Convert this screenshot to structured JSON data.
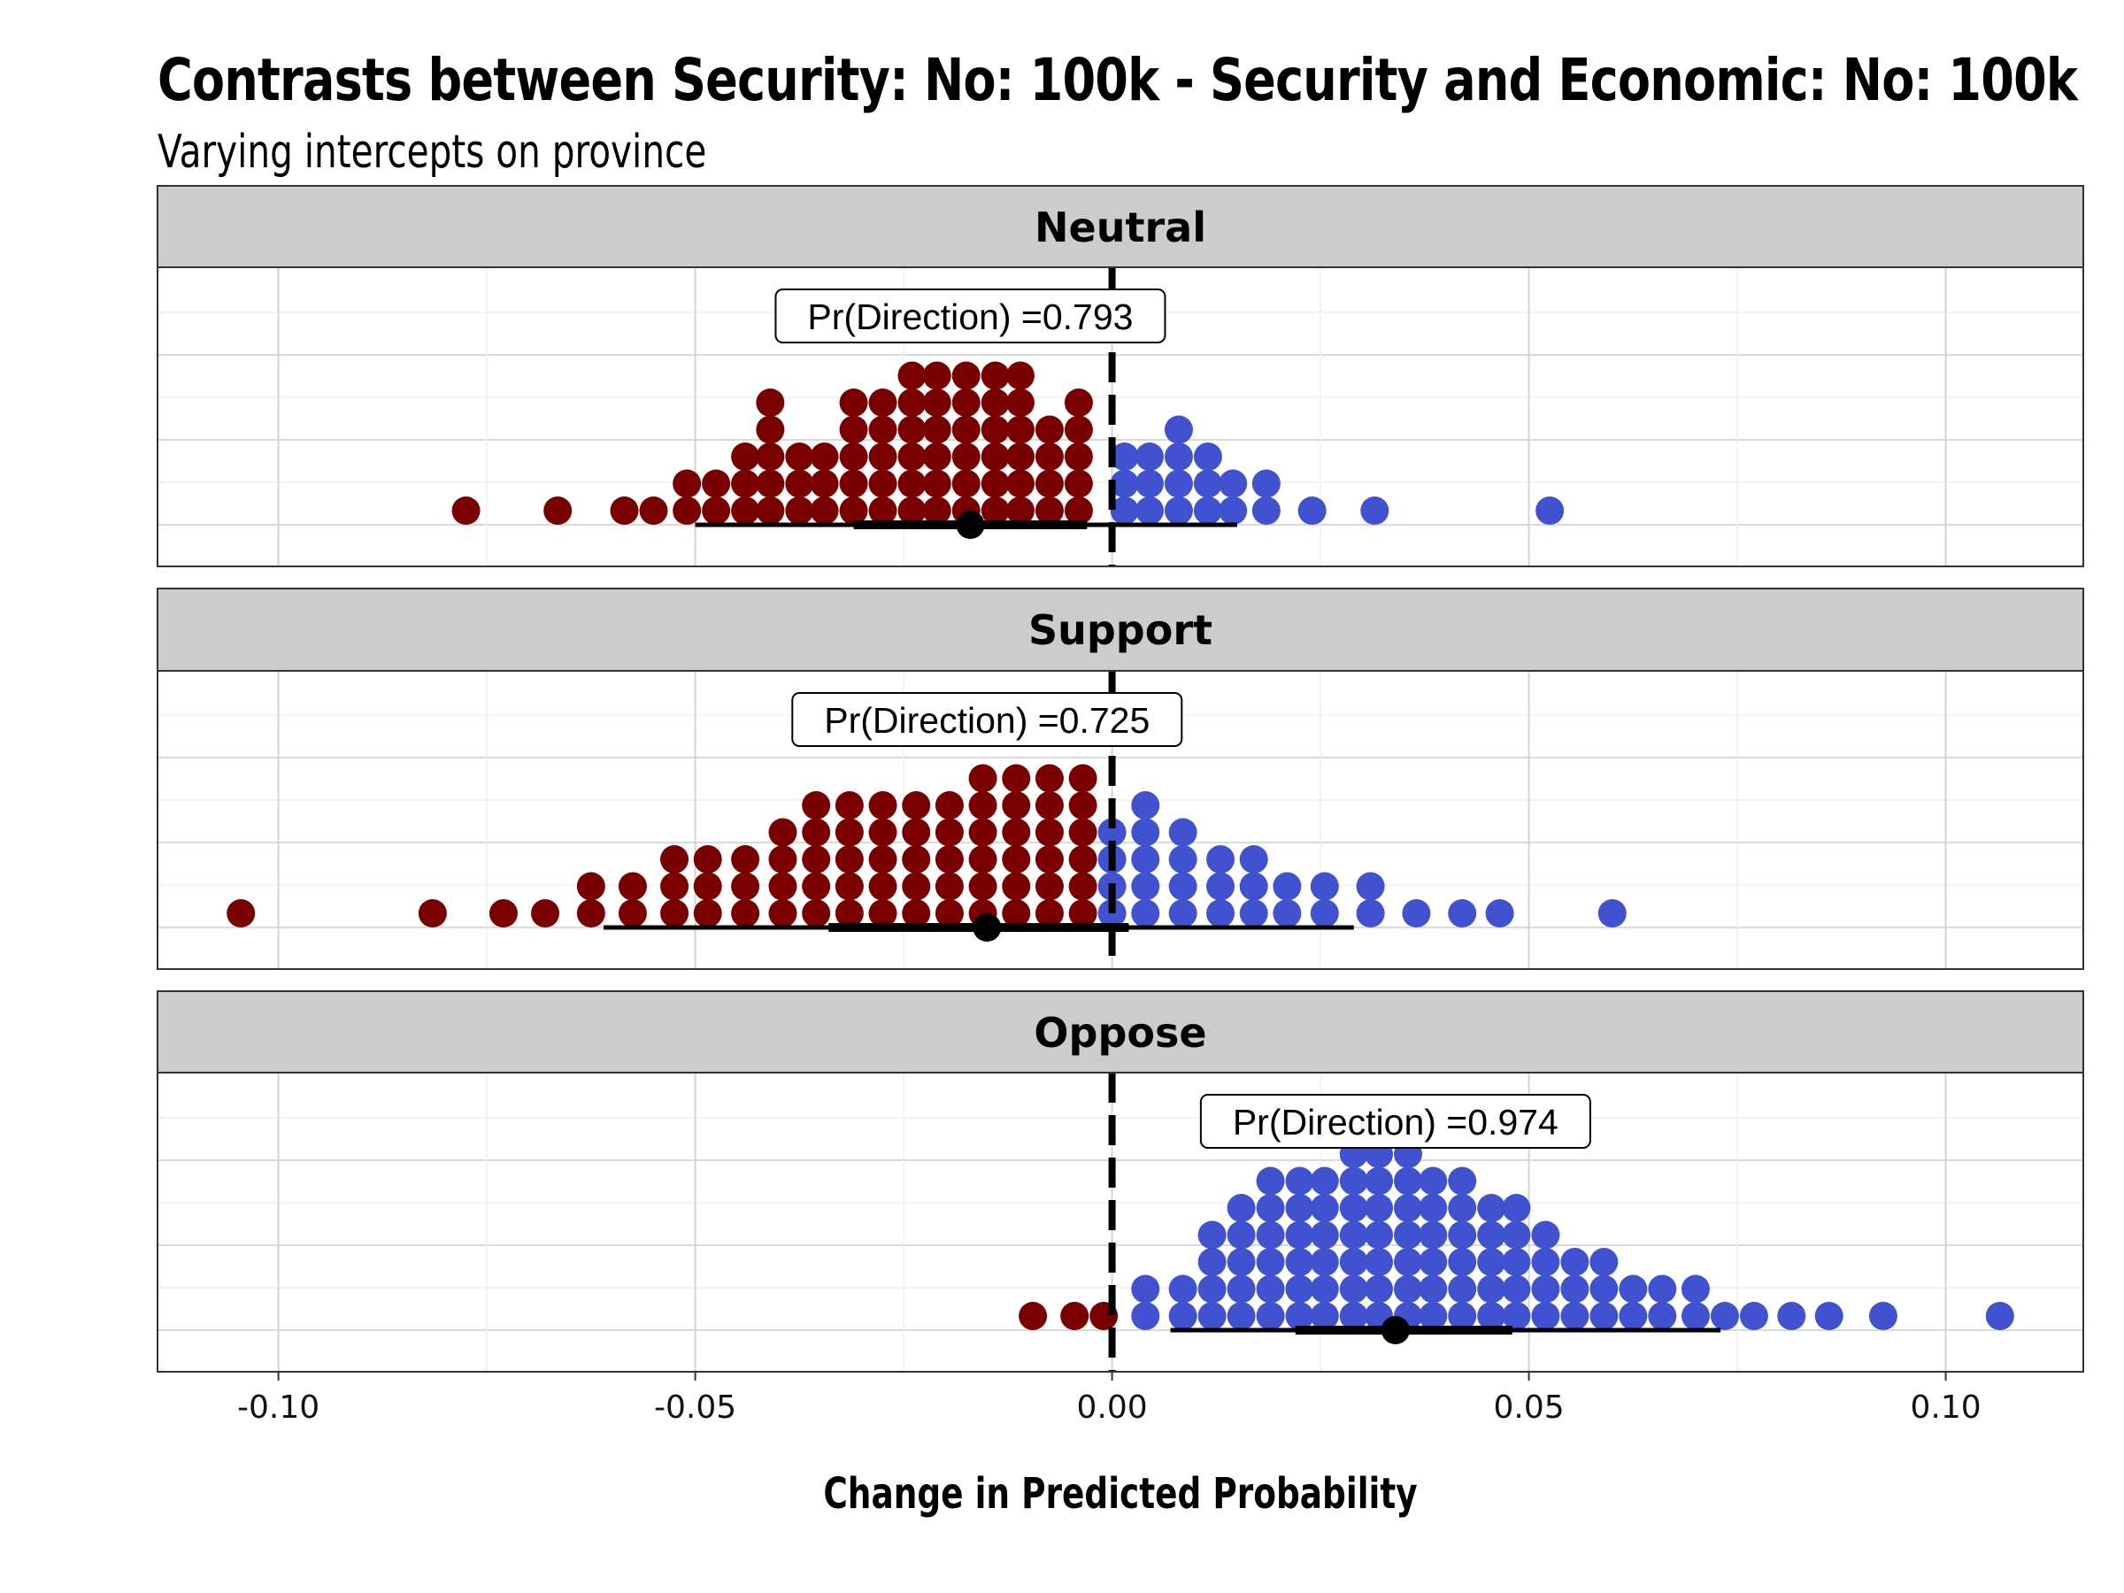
{
  "chart_data": {
    "type": "dotplot",
    "title": "Contrasts between Security: No: 100k - Security and Economic: No: 100k",
    "subtitle": "Varying intercepts on province",
    "xlabel": "Change in Predicted Probability",
    "xlim": [
      -0.1145,
      0.1165
    ],
    "x_ticks": [
      -0.1,
      -0.05,
      0.0,
      0.05,
      0.1
    ],
    "x_tick_labels": [
      "-0.10",
      "-0.05",
      "0.00",
      "0.05",
      "0.10"
    ],
    "reference_line": 0,
    "colors": {
      "negative": "#7a0000",
      "positive": "#4052d0",
      "strip": "#cccccc",
      "interval": "#000000"
    },
    "panels": [
      {
        "label": "Neutral",
        "annotation": "Pr(Direction) =0.793",
        "annotation_x": -0.017,
        "point_estimate": -0.017,
        "interval_66": [
          -0.031,
          -0.003
        ],
        "interval_95": [
          -0.05,
          0.015
        ],
        "dot_columns": [
          [
            -0.0775,
            1
          ],
          [
            -0.0665,
            1
          ],
          [
            -0.0585,
            1
          ],
          [
            -0.055,
            1
          ],
          [
            -0.051,
            2
          ],
          [
            -0.0475,
            2
          ],
          [
            -0.044,
            3
          ],
          [
            -0.041,
            5
          ],
          [
            -0.0375,
            3
          ],
          [
            -0.0345,
            3
          ],
          [
            -0.031,
            5
          ],
          [
            -0.0275,
            5
          ],
          [
            -0.024,
            6
          ],
          [
            -0.021,
            6
          ],
          [
            -0.0175,
            6
          ],
          [
            -0.014,
            6
          ],
          [
            -0.011,
            6
          ],
          [
            -0.0075,
            4
          ],
          [
            -0.004,
            5
          ],
          [
            0.0015,
            3
          ],
          [
            0.0045,
            3
          ],
          [
            0.008,
            4
          ],
          [
            0.0115,
            3
          ],
          [
            0.0145,
            2
          ],
          [
            0.0185,
            2
          ],
          [
            0.024,
            1
          ],
          [
            0.0315,
            1
          ],
          [
            0.0525,
            1
          ]
        ]
      },
      {
        "label": "Support",
        "annotation": "Pr(Direction) =0.725",
        "annotation_x": -0.015,
        "point_estimate": -0.015,
        "interval_66": [
          -0.034,
          0.002
        ],
        "interval_95": [
          -0.061,
          0.029
        ],
        "dot_columns": [
          [
            -0.1045,
            1
          ],
          [
            -0.0815,
            1
          ],
          [
            -0.073,
            1
          ],
          [
            -0.068,
            1
          ],
          [
            -0.0625,
            2
          ],
          [
            -0.0575,
            2
          ],
          [
            -0.0525,
            3
          ],
          [
            -0.0485,
            3
          ],
          [
            -0.044,
            3
          ],
          [
            -0.0395,
            4
          ],
          [
            -0.0355,
            5
          ],
          [
            -0.0315,
            5
          ],
          [
            -0.0275,
            5
          ],
          [
            -0.0235,
            5
          ],
          [
            -0.0195,
            5
          ],
          [
            -0.0155,
            6
          ],
          [
            -0.0115,
            6
          ],
          [
            -0.0075,
            6
          ],
          [
            -0.0035,
            6
          ],
          [
            0.0,
            4
          ],
          [
            0.004,
            5
          ],
          [
            0.0085,
            4
          ],
          [
            0.013,
            3
          ],
          [
            0.017,
            3
          ],
          [
            0.021,
            2
          ],
          [
            0.0255,
            2
          ],
          [
            0.031,
            2
          ],
          [
            0.0365,
            1
          ],
          [
            0.042,
            1
          ],
          [
            0.0465,
            1
          ],
          [
            0.06,
            1
          ]
        ]
      },
      {
        "label": "Oppose",
        "annotation": "Pr(Direction) =0.974",
        "annotation_x": 0.034,
        "point_estimate": 0.034,
        "interval_66": [
          0.022,
          0.048
        ],
        "interval_95": [
          0.007,
          0.073
        ],
        "dot_columns": [
          [
            -0.0095,
            1
          ],
          [
            -0.0045,
            1
          ],
          [
            -0.001,
            1
          ],
          [
            0.004,
            2
          ],
          [
            0.0085,
            2
          ],
          [
            0.012,
            4
          ],
          [
            0.0155,
            5
          ],
          [
            0.019,
            6
          ],
          [
            0.0225,
            6
          ],
          [
            0.0255,
            6
          ],
          [
            0.029,
            7
          ],
          [
            0.032,
            7
          ],
          [
            0.0355,
            7
          ],
          [
            0.0385,
            6
          ],
          [
            0.042,
            6
          ],
          [
            0.0455,
            5
          ],
          [
            0.0485,
            5
          ],
          [
            0.052,
            4
          ],
          [
            0.0555,
            3
          ],
          [
            0.059,
            3
          ],
          [
            0.0625,
            2
          ],
          [
            0.066,
            2
          ],
          [
            0.07,
            2
          ],
          [
            0.0735,
            1
          ],
          [
            0.077,
            1
          ],
          [
            0.0815,
            1
          ],
          [
            0.086,
            1
          ],
          [
            0.0925,
            1
          ],
          [
            0.1065,
            1
          ]
        ]
      }
    ]
  }
}
